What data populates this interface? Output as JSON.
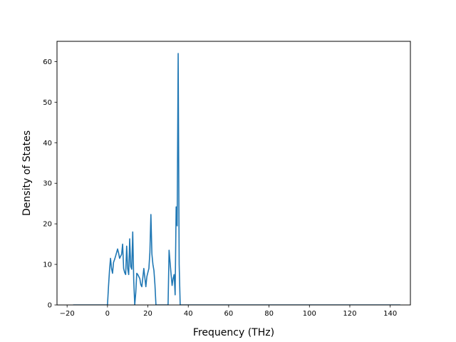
{
  "chart_data": {
    "type": "line",
    "title": "",
    "xlabel": "Frequency (THz)",
    "ylabel": "Density of States",
    "xlim": [
      -25.0,
      150.0
    ],
    "ylim": [
      0,
      65
    ],
    "xticks": [
      -20,
      0,
      20,
      40,
      60,
      80,
      100,
      120,
      140
    ],
    "yticks": [
      0,
      10,
      20,
      30,
      40,
      50,
      60
    ],
    "grid": false,
    "legend": "none",
    "series": [
      {
        "color": "#1f77b4",
        "x": [
          -17.0,
          0.0,
          0.5,
          1.0,
          1.5,
          2.0,
          2.5,
          3.0,
          3.5,
          4.0,
          5.0,
          5.5,
          6.0,
          7.0,
          7.5,
          8.0,
          8.5,
          9.0,
          9.5,
          10.0,
          10.5,
          11.0,
          11.5,
          12.0,
          12.5,
          13.0,
          13.5,
          14.0,
          14.5,
          15.0,
          15.5,
          16.0,
          16.5,
          17.0,
          18.0,
          19.0,
          19.5,
          20.0,
          20.5,
          21.0,
          21.5,
          22.0,
          22.5,
          23.0,
          23.5,
          24.0,
          24.5,
          25.0,
          25.5,
          26.0,
          26.5,
          27.0,
          28.0,
          29.0,
          30.0,
          30.5,
          31.0,
          31.5,
          32.0,
          32.5,
          33.0,
          33.5,
          34.0,
          34.5,
          35.0,
          35.5,
          36.0,
          36.5,
          37.0,
          37.5,
          38.0,
          60.0,
          100.0,
          145.0
        ],
        "y": [
          0,
          0,
          4.5,
          8.5,
          11.5,
          9.0,
          7.8,
          10.5,
          11.2,
          12.0,
          13.8,
          12.8,
          11.5,
          12.5,
          15.0,
          9.0,
          8.0,
          7.5,
          14.5,
          9.0,
          7.5,
          16.3,
          9.5,
          8.8,
          18.0,
          6.0,
          0.0,
          3.0,
          7.8,
          7.5,
          7.0,
          6.5,
          5.0,
          4.5,
          9.0,
          4.5,
          7.0,
          8.0,
          9.0,
          13.0,
          22.3,
          12.5,
          10.0,
          8.5,
          5.0,
          0.0,
          0.0,
          0.0,
          0.0,
          0.0,
          0.0,
          0.0,
          0.0,
          0.0,
          0.0,
          13.5,
          10.5,
          7.5,
          4.8,
          6.5,
          7.5,
          2.5,
          24.2,
          19.5,
          62.0,
          10.0,
          0.0,
          0.0,
          0.0,
          0.0,
          0.0,
          0.0,
          0.0,
          0.0
        ]
      }
    ]
  }
}
